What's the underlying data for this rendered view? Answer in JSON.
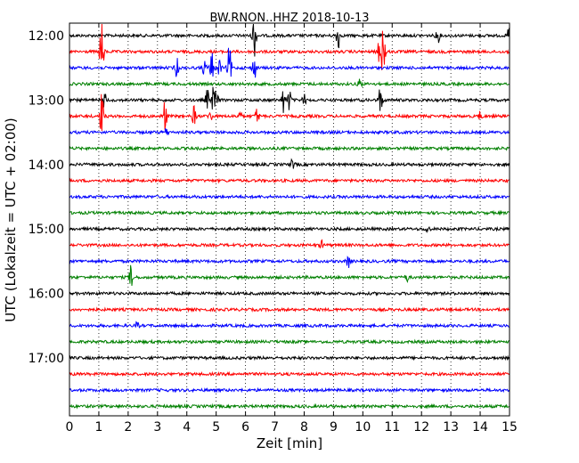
{
  "chart_data": {
    "type": "line",
    "title": "BW.RNON..HHZ 2018-10-13",
    "xlabel": "Zeit  [min]",
    "ylabel": "UTC (Lokalzeit = UTC + 02:00)",
    "xlim": [
      0,
      15
    ],
    "x_ticks": [
      "0",
      "1",
      "2",
      "3",
      "4",
      "5",
      "6",
      "7",
      "8",
      "9",
      "10",
      "11",
      "12",
      "13",
      "14",
      "15"
    ],
    "y_ticks": [
      "12:00",
      "13:00",
      "14:00",
      "15:00",
      "16:00",
      "17:00"
    ],
    "grid": "vertical dotted at each minute",
    "line_interval_min": 15,
    "trace_colors": [
      "#000000",
      "#ff0000",
      "#0000ff",
      "#008000"
    ],
    "traces": [
      {
        "start": "12:00",
        "events": [
          [
            6.3,
            0.9
          ],
          [
            9.15,
            0.6
          ],
          [
            12.55,
            0.3
          ],
          [
            15.0,
            0.5
          ]
        ]
      },
      {
        "start": "12:15",
        "events": [
          [
            1.1,
            1.6
          ],
          [
            10.7,
            1.5
          ],
          [
            10.55,
            0.4
          ]
        ]
      },
      {
        "start": "12:30",
        "events": [
          [
            3.65,
            0.4
          ],
          [
            4.6,
            0.3
          ],
          [
            4.85,
            0.6
          ],
          [
            5.1,
            0.35
          ],
          [
            5.45,
            0.9
          ],
          [
            6.3,
            0.5
          ]
        ]
      },
      {
        "start": "12:45",
        "events": [
          [
            9.9,
            0.2
          ]
        ]
      },
      {
        "start": "13:00",
        "events": [
          [
            1.2,
            0.3
          ],
          [
            4.7,
            0.4
          ],
          [
            4.9,
            0.5
          ],
          [
            5.0,
            0.5
          ],
          [
            7.3,
            0.5
          ],
          [
            7.5,
            0.4
          ],
          [
            8.0,
            0.2
          ],
          [
            10.6,
            0.6
          ]
        ]
      },
      {
        "start": "13:15",
        "events": [
          [
            1.1,
            1.0
          ],
          [
            3.25,
            0.7
          ],
          [
            4.25,
            0.4
          ],
          [
            4.8,
            0.2
          ],
          [
            5.8,
            0.2
          ],
          [
            6.4,
            0.3
          ],
          [
            14.0,
            0.15
          ]
        ]
      },
      {
        "start": "13:30",
        "events": [
          [
            3.3,
            0.15
          ]
        ]
      },
      {
        "start": "13:45",
        "events": []
      },
      {
        "start": "14:00",
        "events": [
          [
            7.6,
            0.2
          ]
        ]
      },
      {
        "start": "14:15",
        "events": []
      },
      {
        "start": "14:30",
        "events": []
      },
      {
        "start": "14:45",
        "events": []
      },
      {
        "start": "15:00",
        "events": [
          [
            12.2,
            0.15
          ]
        ]
      },
      {
        "start": "15:15",
        "events": [
          [
            8.6,
            0.15
          ]
        ]
      },
      {
        "start": "15:30",
        "events": [
          [
            9.5,
            0.25
          ]
        ]
      },
      {
        "start": "15:45",
        "events": [
          [
            2.1,
            0.45
          ],
          [
            11.5,
            0.15
          ]
        ]
      },
      {
        "start": "16:00",
        "events": []
      },
      {
        "start": "16:15",
        "events": []
      },
      {
        "start": "16:30",
        "events": [
          [
            2.3,
            0.12
          ]
        ]
      },
      {
        "start": "16:45",
        "events": []
      },
      {
        "start": "17:00",
        "events": []
      },
      {
        "start": "17:15",
        "events": []
      },
      {
        "start": "17:30",
        "events": []
      },
      {
        "start": "17:45",
        "events": []
      }
    ]
  }
}
